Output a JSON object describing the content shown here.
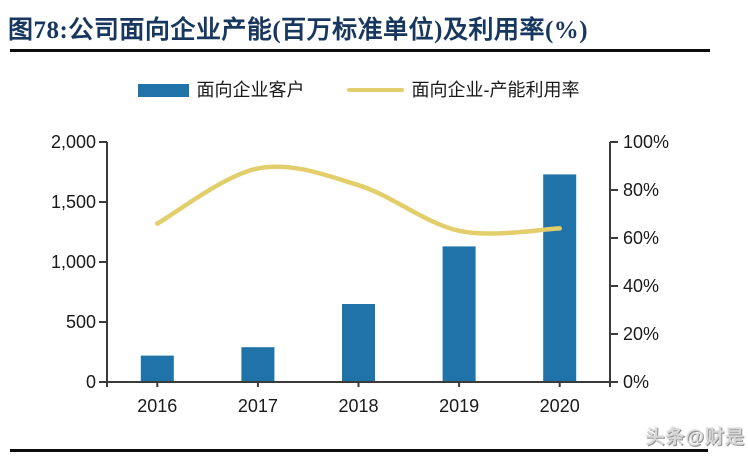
{
  "title": "图78:公司面向企业产能(百万标准单位)及利用率(%)",
  "watermark": "头条@财是",
  "legend": {
    "bar_label": "面向企业客户",
    "line_label": "面向企业-产能利用率"
  },
  "colors": {
    "bar": "#2073A9",
    "line": "#E3CE6C",
    "title": "#17375E",
    "axis": "#3a3a3a",
    "tick_text": "#1a1a1a"
  },
  "chart_data": {
    "type": "bar",
    "title": "公司面向企业产能(百万标准单位)及利用率(%)",
    "categories": [
      "2016",
      "2017",
      "2018",
      "2019",
      "2020"
    ],
    "series": [
      {
        "name": "面向企业客户",
        "type": "bar",
        "axis": "left",
        "color": "#2073A9",
        "values": [
          220,
          290,
          650,
          1130,
          1730
        ]
      },
      {
        "name": "面向企业-产能利用率",
        "type": "line",
        "axis": "right",
        "color": "#E3CE6C",
        "values": [
          66,
          89,
          82,
          63,
          64
        ]
      }
    ],
    "left_axis": {
      "min": 0,
      "max": 2000,
      "step": 500,
      "tick_labels": [
        "0",
        "500",
        "1,000",
        "1,500",
        "2,000"
      ]
    },
    "right_axis": {
      "min": 0,
      "max": 100,
      "step": 20,
      "tick_labels": [
        "0%",
        "20%",
        "40%",
        "60%",
        "80%",
        "100%"
      ]
    },
    "grid": false,
    "legend_position": "top"
  }
}
